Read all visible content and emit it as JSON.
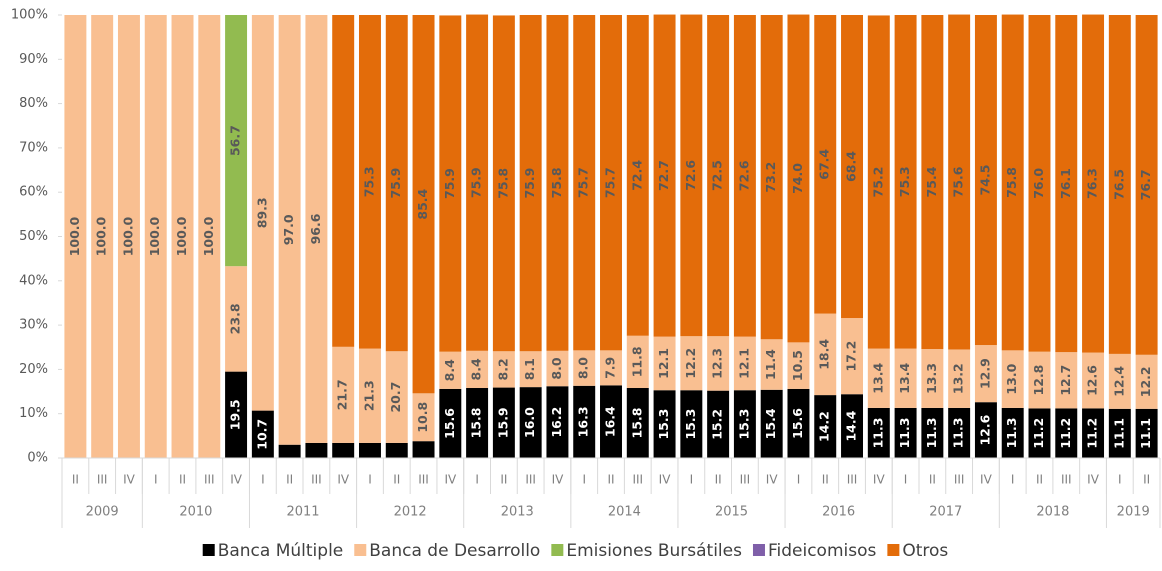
{
  "chart_data": {
    "type": "stacked_bar",
    "categories": [
      "II",
      "III",
      "IV",
      "I",
      "II",
      "III",
      "IV",
      "I",
      "II",
      "III",
      "IV",
      "I",
      "II",
      "III",
      "IV",
      "I",
      "II",
      "III",
      "IV",
      "I",
      "II",
      "III",
      "IV",
      "I",
      "II",
      "III",
      "IV",
      "I",
      "II",
      "III",
      "IV",
      "I",
      "II",
      "III",
      "IV",
      "I",
      "II",
      "III",
      "IV",
      "I",
      "II"
    ],
    "year_groups": [
      {
        "label": "2009",
        "count": 3
      },
      {
        "label": "2010",
        "count": 4
      },
      {
        "label": "2011",
        "count": 4
      },
      {
        "label": "2012",
        "count": 4
      },
      {
        "label": "2013",
        "count": 4
      },
      {
        "label": "2014",
        "count": 4
      },
      {
        "label": "2015",
        "count": 4
      },
      {
        "label": "2016",
        "count": 4
      },
      {
        "label": "2017",
        "count": 4
      },
      {
        "label": "2018",
        "count": 4
      },
      {
        "label": "2019",
        "count": 2
      }
    ],
    "series": [
      {
        "name": "Banca Múltiple",
        "color": "#000000",
        "label_color": "#ffffff",
        "values": [
          0,
          0,
          0,
          0,
          0,
          0,
          19.5,
          10.7,
          3.0,
          3.4,
          3.4,
          3.4,
          3.4,
          3.8,
          15.6,
          15.8,
          15.9,
          16.0,
          16.2,
          16.3,
          16.4,
          15.8,
          15.3,
          15.3,
          15.2,
          15.3,
          15.4,
          15.6,
          14.2,
          14.4,
          11.3,
          11.3,
          11.3,
          11.3,
          12.6,
          11.3,
          11.2,
          11.2,
          11.2,
          11.1,
          11.1
        ],
        "value_labels": [
          null,
          null,
          null,
          null,
          null,
          null,
          "19.5",
          "10.7",
          null,
          null,
          null,
          null,
          null,
          null,
          "15.6",
          "15.8",
          "15.9",
          "16.0",
          "16.2",
          "16.3",
          "16.4",
          "15.8",
          "15.3",
          "15.3",
          "15.2",
          "15.3",
          "15.4",
          "15.6",
          "14.2",
          "14.4",
          "11.3",
          "11.3",
          "11.3",
          "11.3",
          "12.6",
          "11.3",
          "11.2",
          "11.2",
          "11.2",
          "11.1",
          "11.1"
        ]
      },
      {
        "name": "Banca de Desarrollo",
        "color": "#f9bf91",
        "label_color": "#595959",
        "values": [
          100,
          100,
          100,
          100,
          100,
          100,
          23.8,
          89.3,
          97.0,
          96.6,
          21.7,
          21.3,
          20.7,
          10.8,
          8.4,
          8.4,
          8.2,
          8.1,
          8.0,
          8.0,
          7.9,
          11.8,
          12.1,
          12.2,
          12.3,
          12.1,
          11.4,
          10.5,
          18.4,
          17.2,
          13.4,
          13.4,
          13.3,
          13.2,
          12.9,
          13.0,
          12.8,
          12.7,
          12.6,
          12.4,
          12.2
        ],
        "value_labels": [
          "100.0",
          "100.0",
          "100.0",
          "100.0",
          "100.0",
          "100.0",
          "23.8",
          "89.3",
          "97.0",
          "96.6",
          "21.7",
          "21.3",
          "20.7",
          "10.8",
          "8.4",
          "8.4",
          "8.2",
          "8.1",
          "8.0",
          "8.0",
          "7.9",
          "11.8",
          "12.1",
          "12.2",
          "12.3",
          "12.1",
          "11.4",
          "10.5",
          "18.4",
          "17.2",
          "13.4",
          "13.4",
          "13.3",
          "13.2",
          "12.9",
          "13.0",
          "12.8",
          "12.7",
          "12.6",
          "12.4",
          "12.2"
        ]
      },
      {
        "name": "Emisiones Bursátiles",
        "color": "#92bb50",
        "label_color": "#595959",
        "values": [
          0,
          0,
          0,
          0,
          0,
          0,
          56.7,
          0,
          0,
          0,
          0,
          0,
          0,
          0,
          0,
          0,
          0,
          0,
          0,
          0,
          0,
          0,
          0,
          0,
          0,
          0,
          0,
          0,
          0,
          0,
          0,
          0,
          0,
          0,
          0,
          0,
          0,
          0,
          0,
          0,
          0
        ],
        "value_labels": [
          null,
          null,
          null,
          null,
          null,
          null,
          "56.7",
          null,
          null,
          null,
          null,
          null,
          null,
          null,
          null,
          null,
          null,
          null,
          null,
          null,
          null,
          null,
          null,
          null,
          null,
          null,
          null,
          null,
          null,
          null,
          null,
          null,
          null,
          null,
          null,
          null,
          null,
          null,
          null,
          null,
          null
        ]
      },
      {
        "name": "Fideicomisos",
        "color": "#7f5fa9",
        "label_color": "#595959",
        "values": [
          0,
          0,
          0,
          0,
          0,
          0,
          0,
          0,
          0,
          0,
          0,
          0,
          0,
          0,
          0,
          0,
          0,
          0,
          0,
          0,
          0,
          0,
          0,
          0,
          0,
          0,
          0,
          0,
          0,
          0,
          0,
          0,
          0,
          0,
          0,
          0,
          0,
          0,
          0,
          0,
          0
        ]
      },
      {
        "name": "Otros",
        "color": "#e36c0a",
        "label_color": "#595959",
        "values": [
          0,
          0,
          0,
          0,
          0,
          0,
          0,
          0,
          0,
          0,
          74.9,
          75.3,
          75.9,
          85.4,
          75.9,
          75.9,
          75.8,
          75.9,
          75.8,
          75.7,
          75.7,
          72.4,
          72.7,
          72.6,
          72.5,
          72.6,
          73.2,
          74.0,
          67.4,
          68.4,
          75.2,
          75.3,
          75.4,
          75.6,
          74.5,
          75.8,
          76.0,
          76.1,
          76.3,
          76.5,
          76.7
        ],
        "value_labels": [
          null,
          null,
          null,
          null,
          null,
          null,
          null,
          null,
          null,
          null,
          null,
          "75.3",
          "75.9",
          "85.4",
          "75.9",
          "75.9",
          "75.8",
          "75.9",
          "75.8",
          "75.7",
          "75.7",
          "72.4",
          "72.7",
          "72.6",
          "72.5",
          "72.6",
          "73.2",
          "74.0",
          "67.4",
          "68.4",
          "75.2",
          "75.3",
          "75.4",
          "75.6",
          "74.5",
          "75.8",
          "76.0",
          "76.1",
          "76.3",
          "76.5",
          "76.7"
        ]
      }
    ],
    "ylim": [
      0,
      100
    ],
    "yticks": [
      {
        "value": 0,
        "label": "0%"
      },
      {
        "value": 10,
        "label": "10%"
      },
      {
        "value": 20,
        "label": "20%"
      },
      {
        "value": 30,
        "label": "30%"
      },
      {
        "value": 40,
        "label": "40%"
      },
      {
        "value": 50,
        "label": "50%"
      },
      {
        "value": 60,
        "label": "60%"
      },
      {
        "value": 70,
        "label": "70%"
      },
      {
        "value": 80,
        "label": "80%"
      },
      {
        "value": 90,
        "label": "90%"
      },
      {
        "value": 100,
        "label": "100%"
      }
    ],
    "legend": "bottom"
  }
}
